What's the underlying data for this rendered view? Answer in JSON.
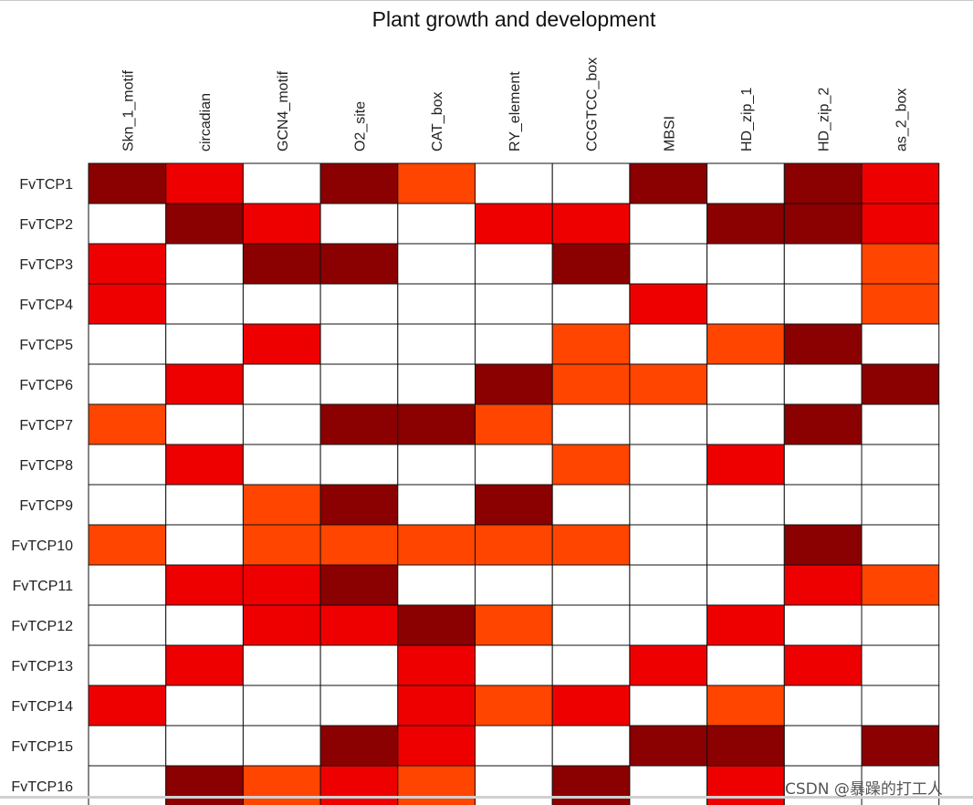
{
  "chart_data": {
    "type": "heatmap",
    "title": "Plant growth and development",
    "xlabel": "",
    "ylabel": "",
    "columns": [
      "Skn_1_motif",
      "circadian",
      "GCN4_motif",
      "O2_site",
      "CAT_box",
      "RY_element",
      "CCGTCC_box",
      "MBSI",
      "HD_zip_1",
      "HD_zip_2",
      "as_2_box"
    ],
    "rows": [
      "FvTCP1",
      "FvTCP2",
      "FvTCP3",
      "FvTCP4",
      "FvTCP5",
      "FvTCP6",
      "FvTCP7",
      "FvTCP8",
      "FvTCP9",
      "FvTCP10",
      "FvTCP11",
      "FvTCP12",
      "FvTCP13",
      "FvTCP14",
      "FvTCP15",
      "FvTCP16"
    ],
    "values": [
      [
        3,
        2,
        0,
        3,
        1,
        0,
        0,
        3,
        0,
        3,
        2
      ],
      [
        0,
        3,
        2,
        0,
        0,
        2,
        2,
        0,
        3,
        3,
        2
      ],
      [
        2,
        0,
        3,
        3,
        0,
        0,
        3,
        0,
        0,
        0,
        1
      ],
      [
        2,
        0,
        0,
        0,
        0,
        0,
        0,
        2,
        0,
        0,
        1
      ],
      [
        0,
        0,
        2,
        0,
        0,
        0,
        1,
        0,
        1,
        3,
        0
      ],
      [
        0,
        2,
        0,
        0,
        0,
        3,
        1,
        1,
        0,
        0,
        3
      ],
      [
        1,
        0,
        0,
        3,
        3,
        1,
        0,
        0,
        0,
        3,
        0
      ],
      [
        0,
        2,
        0,
        0,
        0,
        0,
        1,
        0,
        2,
        0,
        0
      ],
      [
        0,
        0,
        1,
        3,
        0,
        3,
        0,
        0,
        0,
        0,
        0
      ],
      [
        1,
        0,
        1,
        1,
        1,
        1,
        1,
        0,
        0,
        3,
        0
      ],
      [
        0,
        2,
        2,
        3,
        0,
        0,
        0,
        0,
        0,
        2,
        1
      ],
      [
        0,
        0,
        2,
        2,
        3,
        1,
        0,
        0,
        2,
        0,
        0
      ],
      [
        0,
        2,
        0,
        0,
        2,
        0,
        0,
        2,
        0,
        2,
        0
      ],
      [
        2,
        0,
        0,
        0,
        2,
        1,
        2,
        0,
        1,
        0,
        0
      ],
      [
        0,
        0,
        0,
        3,
        2,
        0,
        0,
        3,
        3,
        0,
        3
      ],
      [
        0,
        3,
        1,
        2,
        1,
        0,
        3,
        0,
        2,
        0,
        0
      ]
    ],
    "value_range": [
      0,
      3
    ],
    "color_scale": [
      "#ffffff",
      "#ff4500",
      "#ee0000",
      "#8b0000"
    ],
    "grid": true,
    "legend": "none"
  },
  "watermark": "CSDN @暴躁的打工人"
}
